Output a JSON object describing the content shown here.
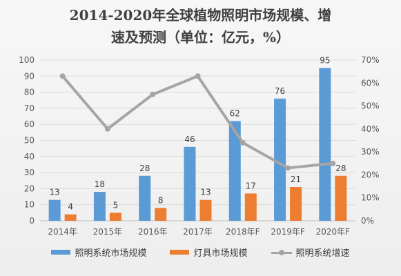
{
  "title_line1": "2014-2020年全球植物照明市场规模、增",
  "title_line2": "速及预测（单位：亿元，%）",
  "chart_data": {
    "type": "bar",
    "categories": [
      "2014年",
      "2015年",
      "2016年",
      "2017年",
      "2018年F",
      "2019年F",
      "2020年F"
    ],
    "series": [
      {
        "name": "照明系统市场规模",
        "type": "bar",
        "axis": "left",
        "color": "#5b9bd5",
        "values": [
          13,
          18,
          28,
          46,
          62,
          76,
          95
        ]
      },
      {
        "name": "灯具市场规模",
        "type": "bar",
        "axis": "left",
        "color": "#ed7d31",
        "values": [
          4,
          5,
          8,
          13,
          17,
          21,
          28
        ]
      },
      {
        "name": "照明系统增速",
        "type": "line",
        "axis": "right",
        "color": "#a5a5a5",
        "values": [
          63,
          40,
          55,
          63,
          34,
          23,
          25
        ]
      }
    ],
    "ylim_left": [
      0,
      100
    ],
    "ylim_right": [
      0,
      70
    ],
    "yticks_left": [
      "0",
      "10",
      "20",
      "30",
      "40",
      "50",
      "60",
      "70",
      "80",
      "90",
      "100"
    ],
    "yticks_right": [
      "0%",
      "10%",
      "20%",
      "30%",
      "40%",
      "50%",
      "60%",
      "70%"
    ],
    "grid": true,
    "legend_position": "bottom"
  }
}
